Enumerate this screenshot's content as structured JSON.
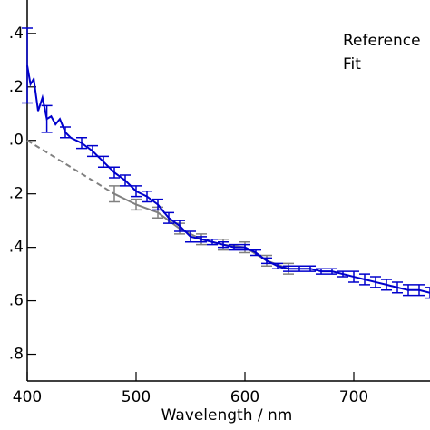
{
  "chart_data": {
    "type": "line",
    "x_label": "Wavelength / nm",
    "xlim": [
      400,
      770
    ],
    "xticks": [
      400,
      500,
      600,
      700
    ],
    "ylim": [
      -0.9,
      0.525
    ],
    "yticks": [
      {
        "value": 0.4,
        "label": ".4"
      },
      {
        "value": 0.2,
        "label": ".2"
      },
      {
        "value": 0.0,
        "label": ".0"
      },
      {
        "value": -0.2,
        "label": ".2"
      },
      {
        "value": -0.4,
        "label": ".4"
      },
      {
        "value": -0.6,
        "label": ".6"
      },
      {
        "value": -0.8,
        "label": ".8"
      }
    ],
    "legend": "upper right",
    "series": [
      {
        "name": "Reference",
        "color": "#808080",
        "dashed_x_range": [
          400,
          480
        ],
        "x": [
          400,
          480,
          500,
          520,
          540,
          560,
          580,
          600,
          620,
          640
        ],
        "values": [
          0.0,
          -0.2,
          -0.24,
          -0.27,
          -0.33,
          -0.37,
          -0.39,
          -0.4,
          -0.45,
          -0.48
        ],
        "errors": [
          0,
          0.03,
          0.02,
          0.02,
          0.02,
          0.02,
          0.02,
          0.02,
          0.02,
          0.02
        ]
      },
      {
        "name": "Fit",
        "color": "#0000cc",
        "x": [
          400,
          403,
          406,
          410,
          414,
          418,
          422,
          426,
          430,
          435,
          440,
          450,
          460,
          470,
          480,
          490,
          500,
          510,
          520,
          530,
          540,
          550,
          560,
          570,
          580,
          590,
          600,
          610,
          620,
          630,
          640,
          650,
          660,
          670,
          680,
          690,
          700,
          710,
          720,
          730,
          740,
          750,
          760,
          770
        ],
        "values": [
          0.28,
          0.21,
          0.23,
          0.11,
          0.16,
          0.08,
          0.09,
          0.06,
          0.08,
          0.03,
          0.01,
          -0.01,
          -0.04,
          -0.08,
          -0.12,
          -0.15,
          -0.19,
          -0.21,
          -0.24,
          -0.29,
          -0.32,
          -0.36,
          -0.37,
          -0.38,
          -0.39,
          -0.4,
          -0.4,
          -0.42,
          -0.45,
          -0.47,
          -0.48,
          -0.48,
          -0.48,
          -0.49,
          -0.49,
          -0.5,
          -0.51,
          -0.52,
          -0.53,
          -0.54,
          -0.55,
          -0.56,
          -0.56,
          -0.57
        ],
        "errors": [
          0.14,
          0,
          0,
          0,
          0,
          0.05,
          0,
          0,
          0,
          0.02,
          0,
          0.02,
          0.02,
          0.02,
          0.02,
          0.02,
          0.02,
          0.02,
          0.02,
          0.02,
          0.02,
          0.02,
          0.01,
          0.01,
          0.01,
          0.01,
          0.01,
          0.01,
          0.01,
          0.01,
          0.01,
          0.01,
          0.01,
          0.01,
          0.01,
          0.01,
          0.02,
          0.02,
          0.02,
          0.02,
          0.02,
          0.02,
          0.02,
          0.02
        ]
      }
    ]
  }
}
